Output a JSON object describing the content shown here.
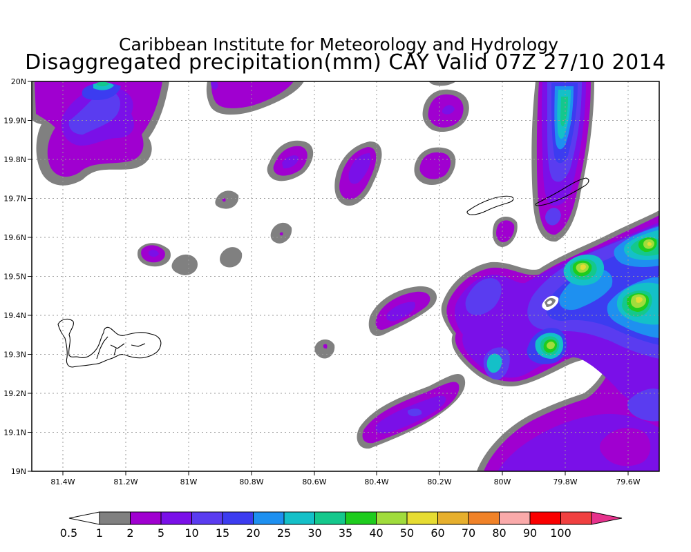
{
  "title_line1": "Caribbean Institute for Meteorology and Hydrology",
  "title_line2": "Disaggregated precipitation(mm) CAY Valid 07Z 27/10 2014",
  "lat_labels": [
    "20N",
    "19.9N",
    "19.8N",
    "19.7N",
    "19.6N",
    "19.5N",
    "19.4N",
    "19.3N",
    "19.2N",
    "19.1N",
    "19N"
  ],
  "lon_labels": [
    "81.4W",
    "81.2W",
    "81W",
    "80.8W",
    "80.6W",
    "80.4W",
    "80.2W",
    "80W",
    "79.8W",
    "79.6W"
  ],
  "colorbar": {
    "labels": [
      "0.5",
      "1",
      "2",
      "5",
      "10",
      "15",
      "20",
      "25",
      "30",
      "35",
      "40",
      "50",
      "60",
      "70",
      "80",
      "90",
      "100"
    ],
    "colors": [
      "#ffffff",
      "#808080",
      "#a000d0",
      "#7a10e8",
      "#5a3cf0",
      "#3c3cf0",
      "#1e90f0",
      "#14c0c8",
      "#14c88c",
      "#1ecc1e",
      "#a0dc3c",
      "#e6dc32",
      "#e6af2d",
      "#f08228",
      "#faaaaa",
      "#fa0000",
      "#f04040",
      "#e6328c"
    ]
  },
  "map_colors": {
    "gray": "#808080",
    "purple": "#a000d0",
    "violet": "#7a10e8",
    "blue": "#5a3cf0",
    "blue2": "#3c3cf0",
    "cyan": "#14c0c8",
    "green": "#1ecc1e",
    "lime": "#a0dc3c",
    "yellow": "#e6dc32"
  }
}
